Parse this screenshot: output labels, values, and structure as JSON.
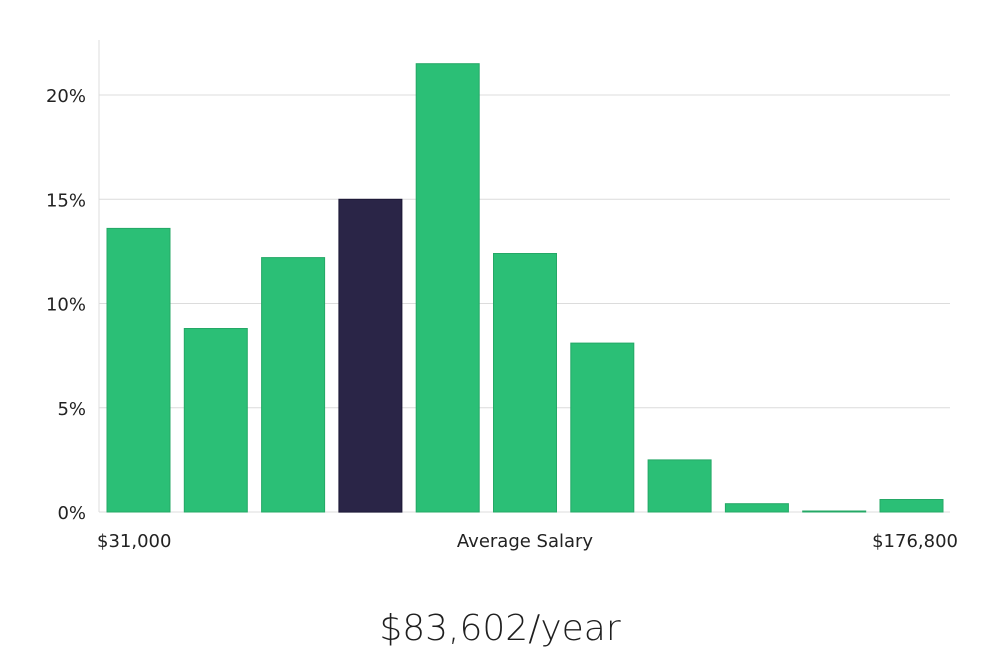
{
  "chart_data": {
    "type": "bar",
    "title": "",
    "xlabel": "Average Salary",
    "ylabel": "",
    "x_min_label": "$31,000",
    "x_max_label": "$176,800",
    "ylim": [
      0,
      22.5
    ],
    "yticks": [
      0,
      5,
      10,
      15,
      20
    ],
    "ytick_labels": [
      "0%",
      "5%",
      "10%",
      "15%",
      "20%"
    ],
    "grid": true,
    "values": [
      13.6,
      8.8,
      12.2,
      15.0,
      21.5,
      12.4,
      8.1,
      2.5,
      0.4,
      0.05,
      0.6
    ],
    "highlight_index": 3,
    "colors": {
      "default": "#2bbf76",
      "highlight": "#2a2547",
      "default_stroke": "#24a866",
      "highlight_stroke": "#1c1836"
    }
  },
  "summary": {
    "salary_text": "$83,602/year"
  }
}
